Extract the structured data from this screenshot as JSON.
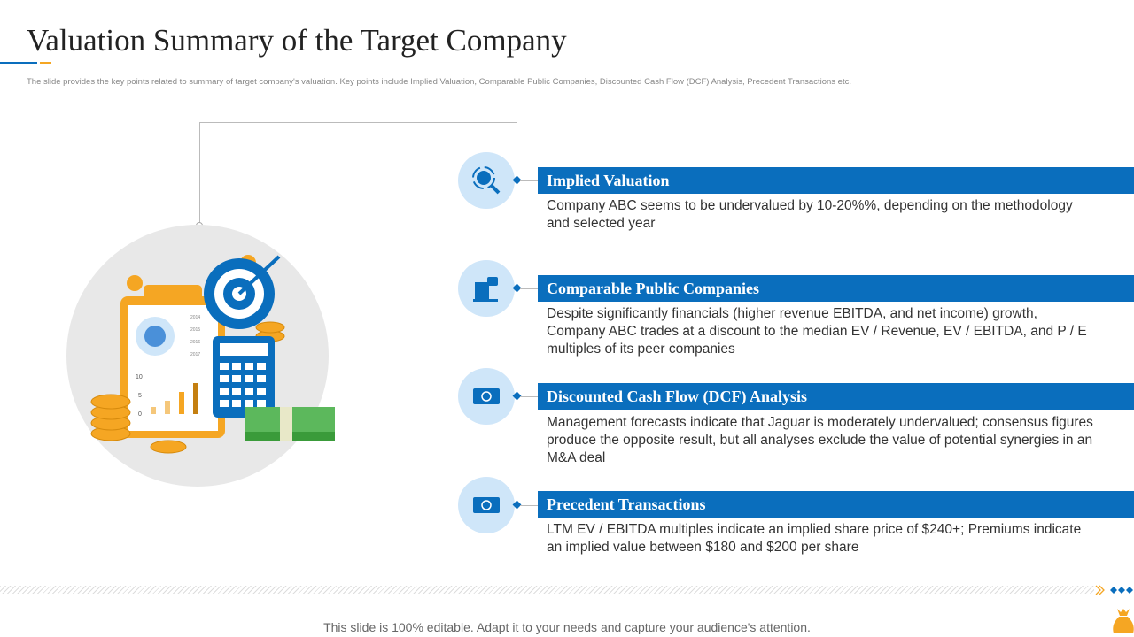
{
  "title": "Valuation Summary of the Target Company",
  "subtitle": "The slide provides the key points related to summary of target company's valuation. Key points include Implied  Valuation, Comparable Public  Companies,  Discounted Cash Flow (DCF)  Analysis, Precedent Transactions etc.",
  "colors": {
    "accent": "#0a6ebd",
    "secondary": "#f5a623",
    "circle": "#cfe6f9"
  },
  "items": [
    {
      "icon": "rupee-search-icon",
      "heading": "Implied Valuation",
      "text": "Company ABC seems to be undervalued  by 10-20%%, depending on the methodology  and selected year"
    },
    {
      "icon": "building-chat-icon",
      "heading": "Comparable Public Companies",
      "text": "Despite significantly financials (higher revenue EBITDA, and net income) growth, Company ABC trades at a discount to the median EV / Revenue,  EV / EBITDA, and P / E multiples of its peer companies"
    },
    {
      "icon": "cash-flow-icon",
      "heading": "Discounted Cash Flow (DCF) Analysis",
      "text": "Management forecasts indicate that Jaguar is moderately undervalued;  consensus figures produce the opposite result,  but all analyses exclude the value of potential synergies in an M&A deal"
    },
    {
      "icon": "cash-flow-icon",
      "heading": "Precedent Transactions",
      "text": "LTM EV / EBITDA multiples indicate an implied share price of $240+; Premiums indicate an implied value  between $180 and $200 per share"
    }
  ],
  "illustration": {
    "chart_years": [
      "2014",
      "2015",
      "2016",
      "2017"
    ],
    "chart_ticks": [
      "10",
      "5",
      "0"
    ]
  },
  "footer": "This slide is 100% editable. Adapt it to your needs and capture your audience's attention."
}
